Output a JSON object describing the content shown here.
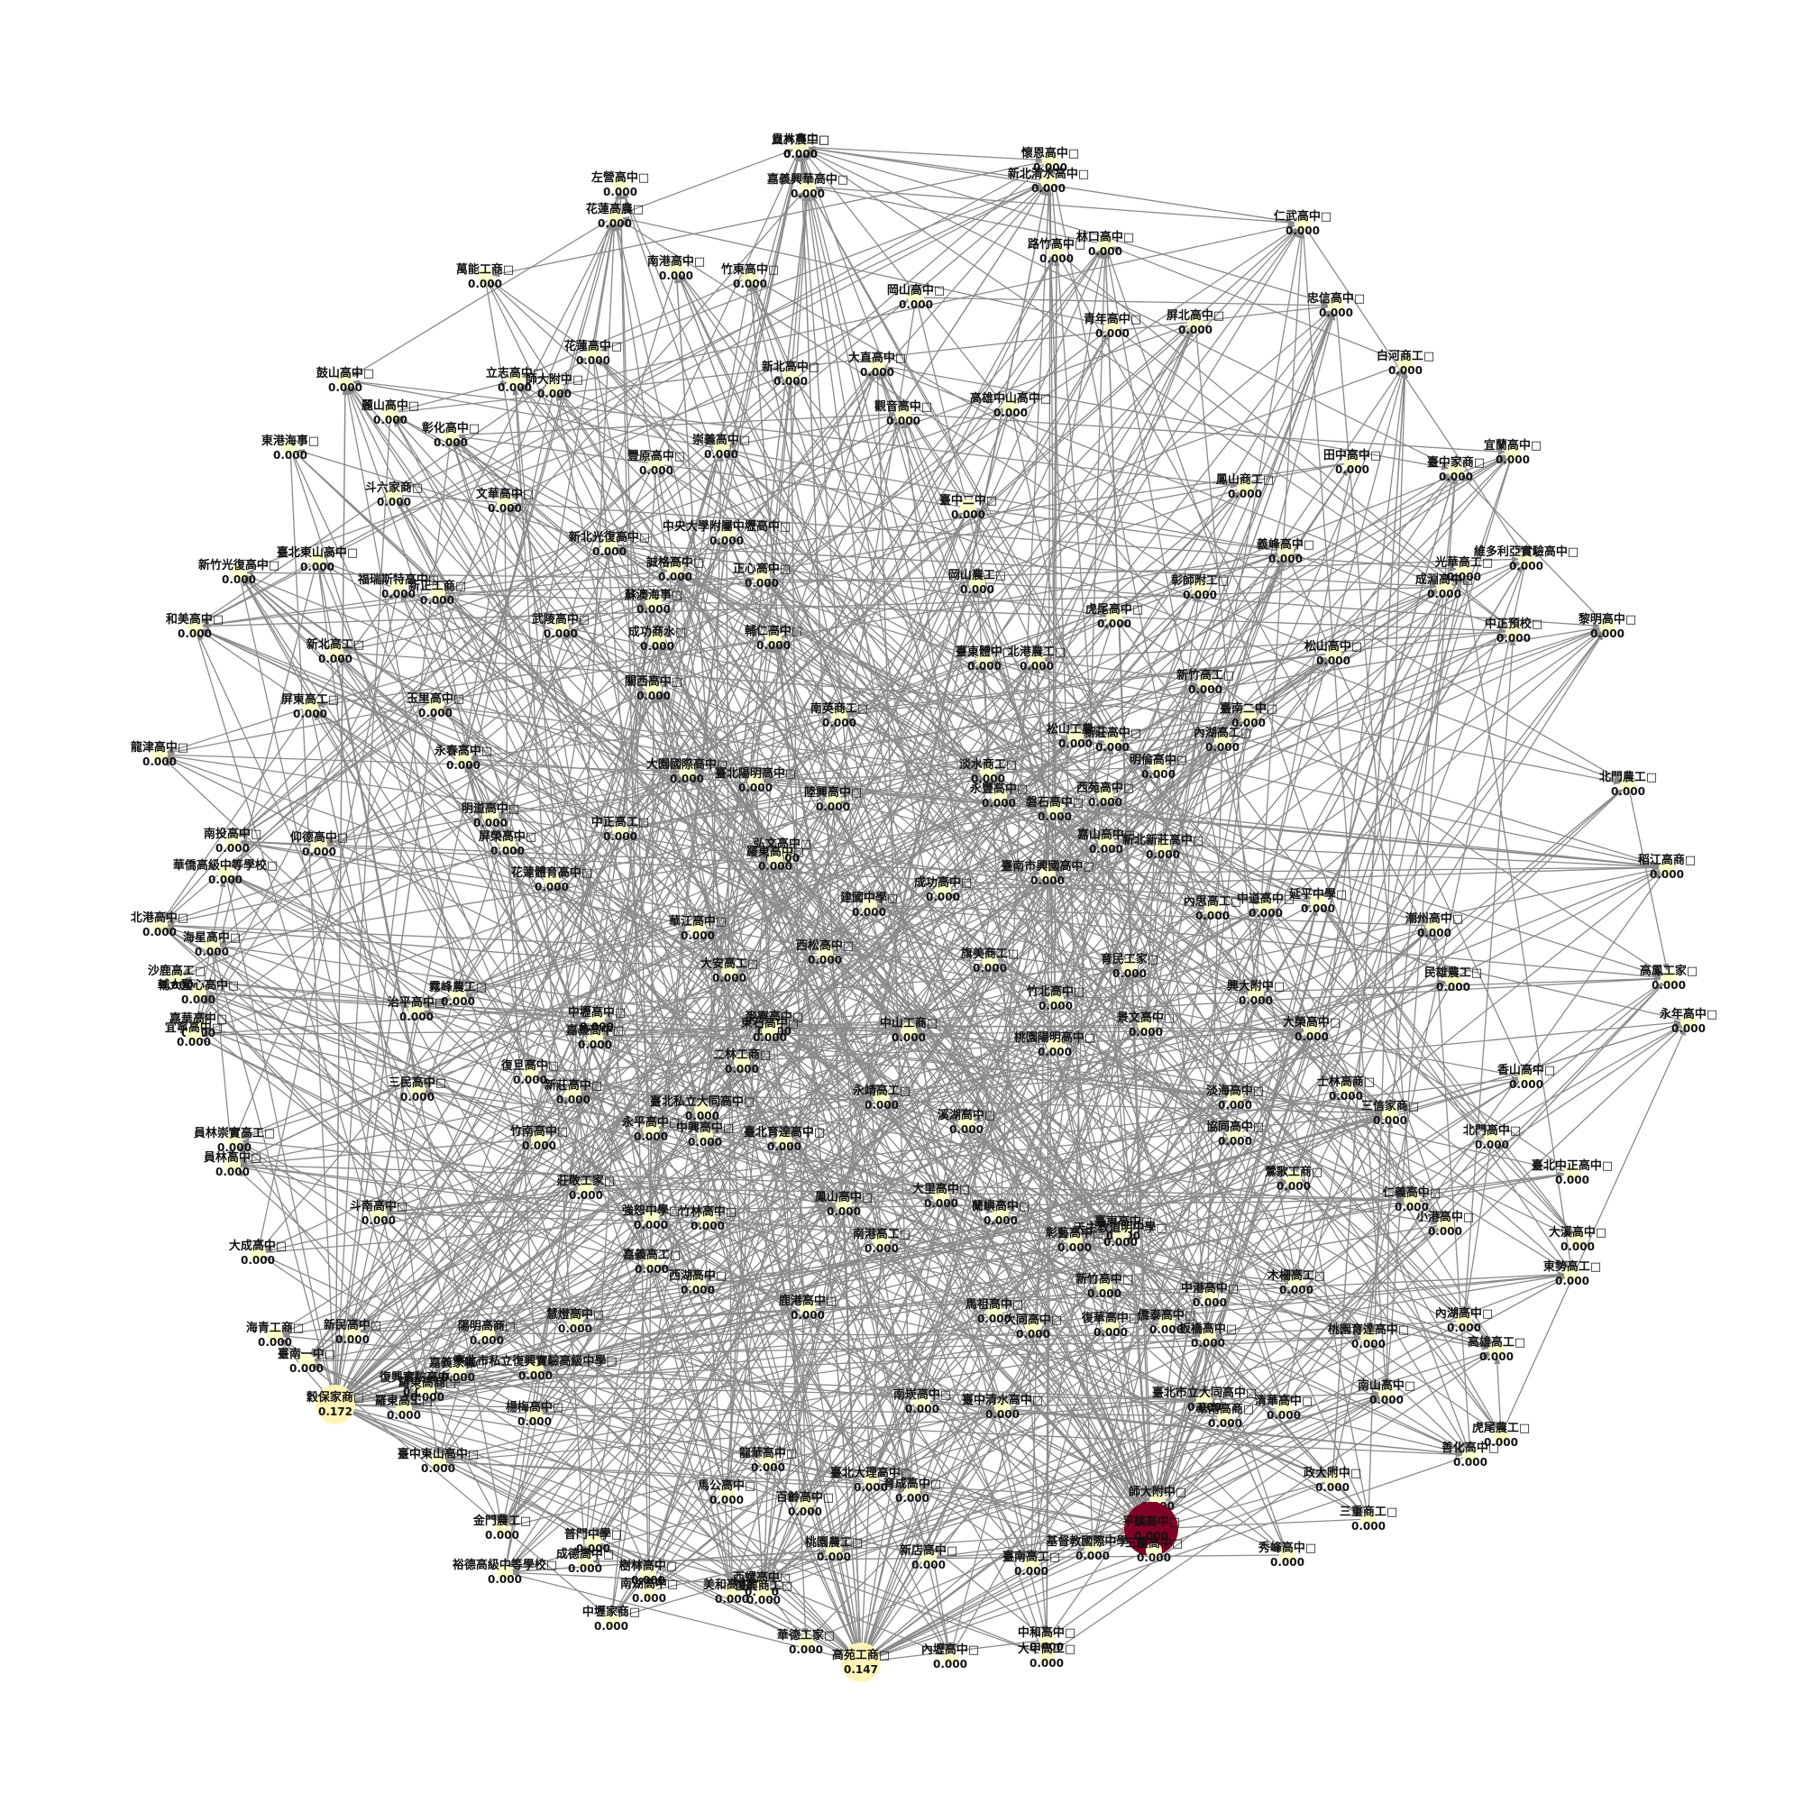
{
  "chart_data": {
    "type": "network",
    "directed": true,
    "colors": {
      "low": "#ffffcc",
      "mid": "#fed976",
      "high": "#800026",
      "edge": "#8a8a8a"
    },
    "nodes": [
      {
        "name": "立人高中",
        "value": "0.000"
      },
      {
        "name": "左營高中",
        "value": "0.000"
      },
      {
        "name": "嘉義興華高中",
        "value": "0.000"
      },
      {
        "name": "懷恩高中",
        "value": "0.000"
      },
      {
        "name": "新北清水高中",
        "value": "0.000"
      },
      {
        "name": "花蓮高農",
        "value": "0.000"
      },
      {
        "name": "仁武高中",
        "value": "0.000"
      },
      {
        "name": "南港高中",
        "value": "0.000"
      },
      {
        "name": "竹東高中",
        "value": "0.000"
      },
      {
        "name": "路竹高中",
        "value": "0.000"
      },
      {
        "name": "林口高中",
        "value": "0.000"
      },
      {
        "name": "萬能工商",
        "value": "0.000"
      },
      {
        "name": "岡山高中",
        "value": "0.000"
      },
      {
        "name": "忠信高中",
        "value": "0.000"
      },
      {
        "name": "青年高中",
        "value": "0.000"
      },
      {
        "name": "屏北高中",
        "value": "0.000"
      },
      {
        "name": "花蓮高中",
        "value": "0.000"
      },
      {
        "name": "大直高中",
        "value": "0.000"
      },
      {
        "name": "白河商工",
        "value": "0.000"
      },
      {
        "name": "鼓山高中",
        "value": "0.000"
      },
      {
        "name": "立志高中",
        "value": "0.000"
      },
      {
        "name": "師大附中",
        "value": "0.000"
      },
      {
        "name": "新北高中",
        "value": "0.000"
      },
      {
        "name": "高雄中山高中",
        "value": "0.000"
      },
      {
        "name": "麗山高中",
        "value": "0.000"
      },
      {
        "name": "彰化高中",
        "value": "0.000"
      },
      {
        "name": "觀音高中",
        "value": "0.000"
      },
      {
        "name": "東港海事",
        "value": "0.000"
      },
      {
        "name": "崇義高中",
        "value": "0.000"
      },
      {
        "name": "豐原高中",
        "value": "0.000"
      },
      {
        "name": "田中高中",
        "value": "0.000"
      },
      {
        "name": "宜蘭高中",
        "value": "0.000"
      },
      {
        "name": "臺中家商",
        "value": "0.000"
      },
      {
        "name": "斗六家商",
        "value": "0.000"
      },
      {
        "name": "文華高中",
        "value": "0.000"
      },
      {
        "name": "鳳山商工",
        "value": "0.000"
      },
      {
        "name": "臺中二中",
        "value": "0.000"
      },
      {
        "name": "中央大學附屬中壢高中",
        "value": "0.000"
      },
      {
        "name": "新北光復高中",
        "value": "0.000"
      },
      {
        "name": "臺北東山高中",
        "value": "0.000"
      },
      {
        "name": "新竹光復高中",
        "value": "0.000"
      },
      {
        "name": "義峰高中",
        "value": "0.000"
      },
      {
        "name": "維多利亞實驗高中",
        "value": "0.000"
      },
      {
        "name": "光華高工",
        "value": "0.000"
      },
      {
        "name": "成淵高中",
        "value": "0.000"
      },
      {
        "name": "福瑞斯特高中",
        "value": "0.000"
      },
      {
        "name": "新正工商",
        "value": "0.000"
      },
      {
        "name": "誠格高中",
        "value": "0.000"
      },
      {
        "name": "正心高中",
        "value": "0.000"
      },
      {
        "name": "岡山農工",
        "value": "0.000"
      },
      {
        "name": "彰師附工",
        "value": "0.000"
      },
      {
        "name": "蘇澳海事",
        "value": "0.000"
      },
      {
        "name": "和美高中",
        "value": "0.000"
      },
      {
        "name": "武陵高中",
        "value": "0.000"
      },
      {
        "name": "虎尾高中",
        "value": "0.000"
      },
      {
        "name": "黎明高中",
        "value": "0.000"
      },
      {
        "name": "成功商水",
        "value": "0.000"
      },
      {
        "name": "輔仁高中",
        "value": "0.000"
      },
      {
        "name": "松山高中",
        "value": "0.000"
      },
      {
        "name": "中正預校",
        "value": "0.000"
      },
      {
        "name": "新北高工",
        "value": "0.000"
      },
      {
        "name": "臺東體中",
        "value": "0.000"
      },
      {
        "name": "北港農工",
        "value": "0.000"
      },
      {
        "name": "新竹高工",
        "value": "0.000"
      },
      {
        "name": "屏東高工",
        "value": "0.000"
      },
      {
        "name": "玉里高中",
        "value": "0.000"
      },
      {
        "name": "關西高中",
        "value": "0.000"
      },
      {
        "name": "南英商工",
        "value": "0.000"
      },
      {
        "name": "臺南二中",
        "value": "0.000"
      },
      {
        "name": "龍津高中",
        "value": "0.000"
      },
      {
        "name": "永春高中",
        "value": "0.000"
      },
      {
        "name": "松山工農",
        "value": "0.000"
      },
      {
        "name": "新莊高中",
        "value": "0.000"
      },
      {
        "name": "內湖高工",
        "value": "0.000"
      },
      {
        "name": "大園國際高中",
        "value": "0.000"
      },
      {
        "name": "臺北陽明高中",
        "value": "0.000"
      },
      {
        "name": "淡水商工",
        "value": "0.000"
      },
      {
        "name": "明倫高中",
        "value": "0.000"
      },
      {
        "name": "北門農工",
        "value": "0.000"
      },
      {
        "name": "南投高中",
        "value": "0.000"
      },
      {
        "name": "仰德高中",
        "value": "0.000"
      },
      {
        "name": "明道高中",
        "value": "0.000"
      },
      {
        "name": "陸興高中",
        "value": "0.000"
      },
      {
        "name": "永豐高中",
        "value": "0.000"
      },
      {
        "name": "磐石高中",
        "value": "0.000"
      },
      {
        "name": "西苑高中",
        "value": "0.000"
      },
      {
        "name": "中正高工",
        "value": "0.000"
      },
      {
        "name": "屏榮高中",
        "value": "0.000"
      },
      {
        "name": "弘文高中",
        "value": "0.000"
      },
      {
        "name": "嘉山高中",
        "value": "0.000"
      },
      {
        "name": "新北新莊高中",
        "value": "0.000"
      },
      {
        "name": "華僑高級中等學校",
        "value": "0.000"
      },
      {
        "name": "花蓮體育高中",
        "value": "0.000"
      },
      {
        "name": "羅東高中",
        "value": "0.000"
      },
      {
        "name": "成功高中",
        "value": "0.000"
      },
      {
        "name": "臺南市興國高中",
        "value": "0.000"
      },
      {
        "name": "稻江高商",
        "value": "0.000"
      },
      {
        "name": "北港高中",
        "value": "0.000"
      },
      {
        "name": "建國中學",
        "value": "0.000"
      },
      {
        "name": "內思高工",
        "value": "0.000"
      },
      {
        "name": "中道高中",
        "value": "0.000"
      },
      {
        "name": "延平中學",
        "value": "0.000"
      },
      {
        "name": "潮州高中",
        "value": "0.000"
      },
      {
        "name": "海星高中",
        "value": "0.000"
      },
      {
        "name": "華江高中",
        "value": "0.000"
      },
      {
        "name": "西松高中",
        "value": "0.000"
      },
      {
        "name": "旗美商工",
        "value": "0.000"
      },
      {
        "name": "育民工家",
        "value": "0.000"
      },
      {
        "name": "民雄農工",
        "value": "0.000"
      },
      {
        "name": "沙鹿高工",
        "value": "0.000"
      },
      {
        "name": "大安高工",
        "value": "0.000"
      },
      {
        "name": "高鳳工家",
        "value": "0.000"
      },
      {
        "name": "輔大聖心高中",
        "value": "0.000"
      },
      {
        "name": "霧峰農工",
        "value": "0.000"
      },
      {
        "name": "治平高中",
        "value": "0.000"
      },
      {
        "name": "竹北高中",
        "value": "0.000"
      },
      {
        "name": "興大附中",
        "value": "0.000"
      },
      {
        "name": "永年高中",
        "value": "0.000"
      },
      {
        "name": "嘉華高中",
        "value": "0.000"
      },
      {
        "name": "中壢高中",
        "value": "0.000"
      },
      {
        "name": "麥寮高中",
        "value": "0.000"
      },
      {
        "name": "景文高中",
        "value": "0.000"
      },
      {
        "name": "宜寧高中",
        "value": "0.000"
      },
      {
        "name": "嘉義高中",
        "value": "0.000"
      },
      {
        "name": "東石高中",
        "value": "0.000"
      },
      {
        "name": "中山工商",
        "value": "0.000"
      },
      {
        "name": "大榮高中",
        "value": "0.000"
      },
      {
        "name": "桃園陽明高中",
        "value": "0.000"
      },
      {
        "name": "二林工商",
        "value": "0.000"
      },
      {
        "name": "三民高中",
        "value": "0.000"
      },
      {
        "name": "復旦高中",
        "value": "0.000"
      },
      {
        "name": "新莊高中",
        "value": "0.000"
      },
      {
        "name": "永靖高工",
        "value": "0.000"
      },
      {
        "name": "香山高中",
        "value": "0.000"
      },
      {
        "name": "士林高商",
        "value": "0.000"
      },
      {
        "name": "淡海高中",
        "value": "0.000"
      },
      {
        "name": "三信家商",
        "value": "0.000"
      },
      {
        "name": "臺北私立大同高中",
        "value": "0.000"
      },
      {
        "name": "溪湖高中",
        "value": "0.000"
      },
      {
        "name": "協同高中",
        "value": "0.000"
      },
      {
        "name": "北門高中",
        "value": "0.000"
      },
      {
        "name": "員林崇實高工",
        "value": "0.000"
      },
      {
        "name": "竹南高中",
        "value": "0.000"
      },
      {
        "name": "永平高中",
        "value": "0.000"
      },
      {
        "name": "中興高中",
        "value": "0.000"
      },
      {
        "name": "臺北育達高中",
        "value": "0.000"
      },
      {
        "name": "臺北中正高中",
        "value": "0.000"
      },
      {
        "name": "員林高中",
        "value": "0.000"
      },
      {
        "name": "莊敬工家",
        "value": "0.000"
      },
      {
        "name": "鶯歌工商",
        "value": "0.000"
      },
      {
        "name": "大里高中",
        "value": "0.000"
      },
      {
        "name": "仁義高中",
        "value": "0.000"
      },
      {
        "name": "斗南高中",
        "value": "0.000"
      },
      {
        "name": "強恕中學",
        "value": "0.000"
      },
      {
        "name": "竹林高中",
        "value": "0.000"
      },
      {
        "name": "鳳山高中",
        "value": "0.000"
      },
      {
        "name": "蘭嶼高中",
        "value": "0.000"
      },
      {
        "name": "臺東高中",
        "value": "0.000"
      },
      {
        "name": "天主教道明中學",
        "value": "0.000"
      },
      {
        "name": "小港高中",
        "value": "0.000"
      },
      {
        "name": "大成高中",
        "value": "0.000"
      },
      {
        "name": "南港高工",
        "value": "0.000"
      },
      {
        "name": "彰藝高中",
        "value": "0.000"
      },
      {
        "name": "大溪高中",
        "value": "0.000"
      },
      {
        "name": "嘉義高工",
        "value": "0.000"
      },
      {
        "name": "西湖高中",
        "value": "0.000"
      },
      {
        "name": "新竹高中",
        "value": "0.000"
      },
      {
        "name": "東勢高工",
        "value": "0.000"
      },
      {
        "name": "木柵高工",
        "value": "0.000"
      },
      {
        "name": "鹿港高中",
        "value": "0.000"
      },
      {
        "name": "馬祖高中",
        "value": "0.000"
      },
      {
        "name": "中港高中",
        "value": "0.000"
      },
      {
        "name": "海青工商",
        "value": "0.000"
      },
      {
        "name": "新民高中",
        "value": "0.000"
      },
      {
        "name": "陽明高商",
        "value": "0.000"
      },
      {
        "name": "慧燈高中",
        "value": "0.000"
      },
      {
        "name": "大同高中",
        "value": "0.000"
      },
      {
        "name": "復華高中",
        "value": "0.000"
      },
      {
        "name": "僑泰高中",
        "value": "0.000"
      },
      {
        "name": "板橋高中",
        "value": "0.000"
      },
      {
        "name": "高雄高工",
        "value": "0.000"
      },
      {
        "name": "桃園育達高中",
        "value": "0.000"
      },
      {
        "name": "臺南一中",
        "value": "0.000"
      },
      {
        "name": "復興實驗高中",
        "value": "0.000"
      },
      {
        "name": "內湖高中",
        "value": "0.000"
      },
      {
        "name": "臺北市私立復興實驗高級中學",
        "value": "0.000"
      },
      {
        "name": "嘉義家職",
        "value": "0.000"
      },
      {
        "name": "羅東高商",
        "value": "0.000"
      },
      {
        "name": "南崁高中",
        "value": "0.000"
      },
      {
        "name": "臺中清水高中",
        "value": "0.000"
      },
      {
        "name": "臺北市立大同高中",
        "value": "0.000"
      },
      {
        "name": "清華高中",
        "value": "0.000"
      },
      {
        "name": "南山高中",
        "value": "0.000"
      },
      {
        "name": "穀保家商",
        "value": "0.172"
      },
      {
        "name": "羅東高工",
        "value": "0.000"
      },
      {
        "name": "楊梅高中",
        "value": "0.000"
      },
      {
        "name": "華南高商",
        "value": "0.000"
      },
      {
        "name": "善化高中",
        "value": "0.000"
      },
      {
        "name": "虎尾農工",
        "value": "0.000"
      },
      {
        "name": "臺中東山高中",
        "value": "0.000"
      },
      {
        "name": "龍華高中",
        "value": "0.000"
      },
      {
        "name": "馬公高中",
        "value": "0.000"
      },
      {
        "name": "臺北大理高中",
        "value": "0.000"
      },
      {
        "name": "育成高中",
        "value": "0.000"
      },
      {
        "name": "師大附中",
        "value": "0.000"
      },
      {
        "name": "政大附中",
        "value": "0.000"
      },
      {
        "name": "百齡高中",
        "value": "0.000"
      },
      {
        "name": "三重商工",
        "value": "0.000"
      },
      {
        "name": "金門農工",
        "value": "0.000"
      },
      {
        "name": "普門中學",
        "value": "0.000"
      },
      {
        "name": "成德高中",
        "value": "0.000"
      },
      {
        "name": "平鎮高中",
        "value": "0.000"
      },
      {
        "name": "基督教國際中學",
        "value": "0.000"
      },
      {
        "name": "桃園農工",
        "value": "0.000"
      },
      {
        "name": "三重高中",
        "value": "0.000"
      },
      {
        "name": "新店高中",
        "value": "0.000"
      },
      {
        "name": "臺南高工",
        "value": "0.000"
      },
      {
        "name": "秀峰高中",
        "value": "0.000"
      },
      {
        "name": "裕德高級中等學校",
        "value": "0.000"
      },
      {
        "name": "樹林高中",
        "value": "0.000"
      },
      {
        "name": "南湖高中",
        "value": "0.000"
      },
      {
        "name": "西螺高中",
        "value": "0.000"
      },
      {
        "name": "美和高中",
        "value": "0.000"
      },
      {
        "name": "復興商工",
        "value": "0.000"
      },
      {
        "name": "中壢家商",
        "value": "0.000"
      },
      {
        "name": "華德工家",
        "value": "0.000"
      },
      {
        "name": "高苑工商",
        "value": "0.147"
      },
      {
        "name": "內壢高中",
        "value": "0.000"
      },
      {
        "name": "中和高中",
        "value": "0.000"
      },
      {
        "name": "大甲高工",
        "value": "0.000"
      },
      {
        "name": "員林農工",
        "value": "0.000"
      }
    ]
  }
}
